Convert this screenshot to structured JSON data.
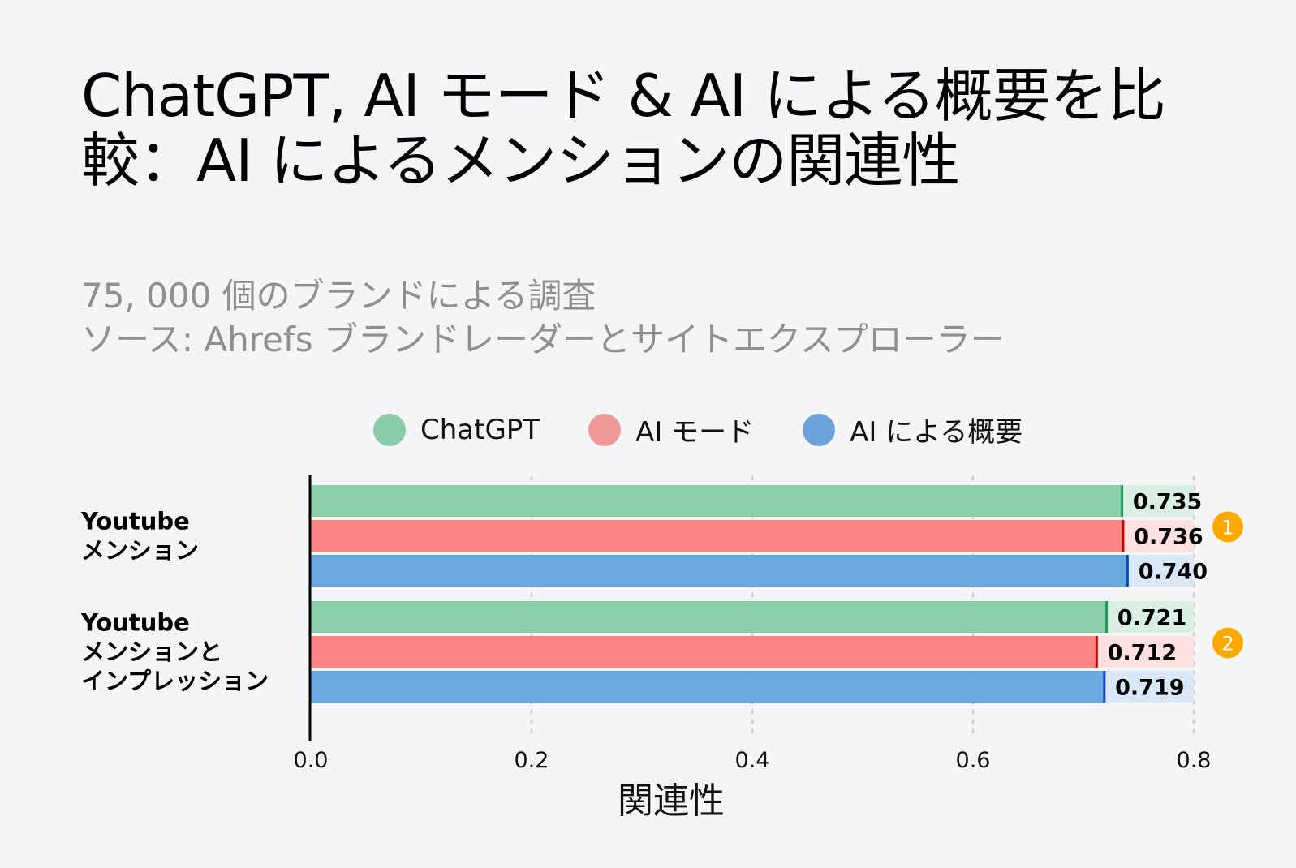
{
  "title": "ChatGPT, AI モード & AI による概要を比較：AI によるメンションの関連性",
  "subtitle_lines": [
    "75, 000 個のブランドによる調査",
    "ソース: Ahrefs ブランドレーダーとサイトエクスプローラー"
  ],
  "colors": {
    "ChatGPT": "#8bd0aa",
    "AI モード": "#ff8484",
    "AI による概要": "#6aa9e0",
    "ChatGPT_track": "#d9efe3",
    "AI モード_track": "#fde0e0",
    "AI による概要_track": "#d8e8f6",
    "ChatGPT_marker": "#1f9a55",
    "AI モード_marker": "#cc0000",
    "AI による概要_marker": "#1045c8",
    "legend_ChatGPT": "#88cba6",
    "legend_AI モード": "#ee9898",
    "legend_AI による概要": "#6aa1d9",
    "badge": "#ffa800"
  },
  "chart_data": {
    "type": "bar",
    "orientation": "horizontal",
    "categories": [
      [
        "Youtube",
        "メンション"
      ],
      [
        "Youtube",
        "メンションと",
        "インプレッション"
      ]
    ],
    "series": [
      {
        "name": "ChatGPT",
        "values": [
          0.735,
          0.721
        ],
        "labels": [
          "0.735",
          "0.721"
        ]
      },
      {
        "name": "AI モード",
        "values": [
          0.736,
          0.712
        ],
        "labels": [
          "0.736",
          "0.712"
        ]
      },
      {
        "name": "AI による概要",
        "values": [
          0.74,
          0.719
        ],
        "labels": [
          "0.740",
          "0.719"
        ]
      }
    ],
    "xlabel": "関連性",
    "xlim": [
      0,
      0.8
    ],
    "xticks": [
      "0.0",
      "0.2",
      "0.4",
      "0.6",
      "0.8"
    ],
    "grid": "vertical dotted",
    "legend": "top",
    "badges": [
      "1",
      "2"
    ]
  }
}
